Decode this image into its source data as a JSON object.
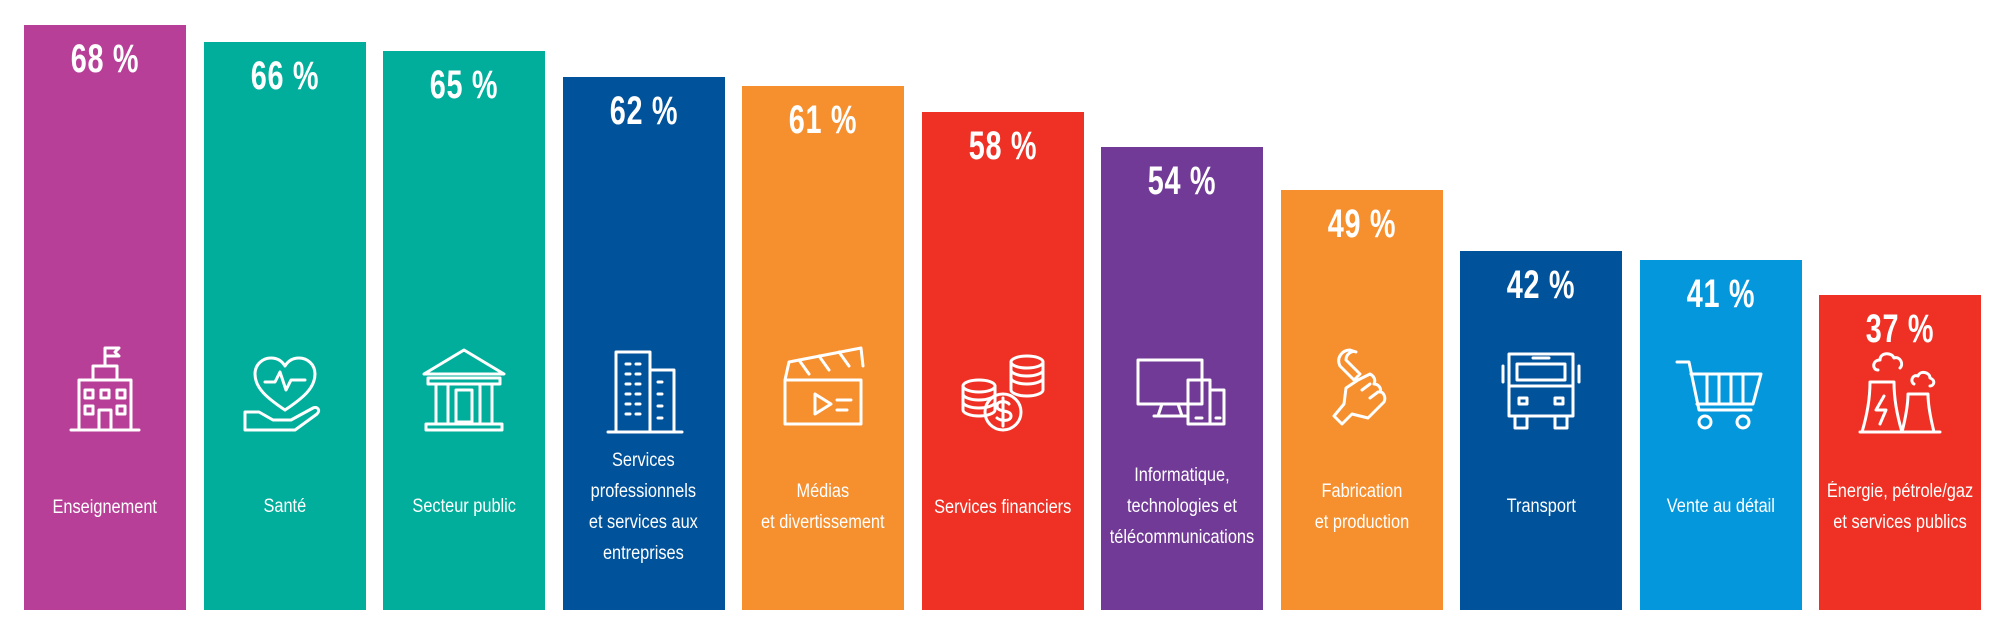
{
  "chart_data": {
    "type": "bar",
    "title": "",
    "xlabel": "",
    "ylabel": "",
    "ylim": [
      0,
      68
    ],
    "unit": "%",
    "categories": [
      "Enseignement",
      "Santé",
      "Secteur public",
      "Services\nprofessionnels\net services aux\nentreprises",
      "Médias\net divertissement",
      "Services financiers",
      "Informatique,\ntechnologies et\ntélécommunications",
      "Fabrication\net production",
      "Transport",
      "Vente au détail",
      "Énergie, pétrole/gaz\net services publics"
    ],
    "values": [
      68,
      66,
      65,
      62,
      61,
      58,
      54,
      49,
      42,
      41,
      37
    ],
    "value_labels": [
      "68 %",
      "66 %",
      "65 %",
      "62 %",
      "61 %",
      "58 %",
      "54 %",
      "49 %",
      "42 %",
      "41 %",
      "37 %"
    ],
    "colors": [
      "#b83f97",
      "#00ae9b",
      "#00ae9b",
      "#00529b",
      "#f68f2e",
      "#ee3124",
      "#703a96",
      "#f68f2e",
      "#00529b",
      "#0497dc",
      "#ee3124"
    ],
    "icons": [
      "school-building-icon",
      "heart-hand-icon",
      "public-building-icon",
      "office-tower-icon",
      "clapperboard-icon",
      "coins-icon",
      "devices-icon",
      "wrench-fist-icon",
      "bus-icon",
      "shopping-cart-icon",
      "power-plant-icon"
    ]
  }
}
